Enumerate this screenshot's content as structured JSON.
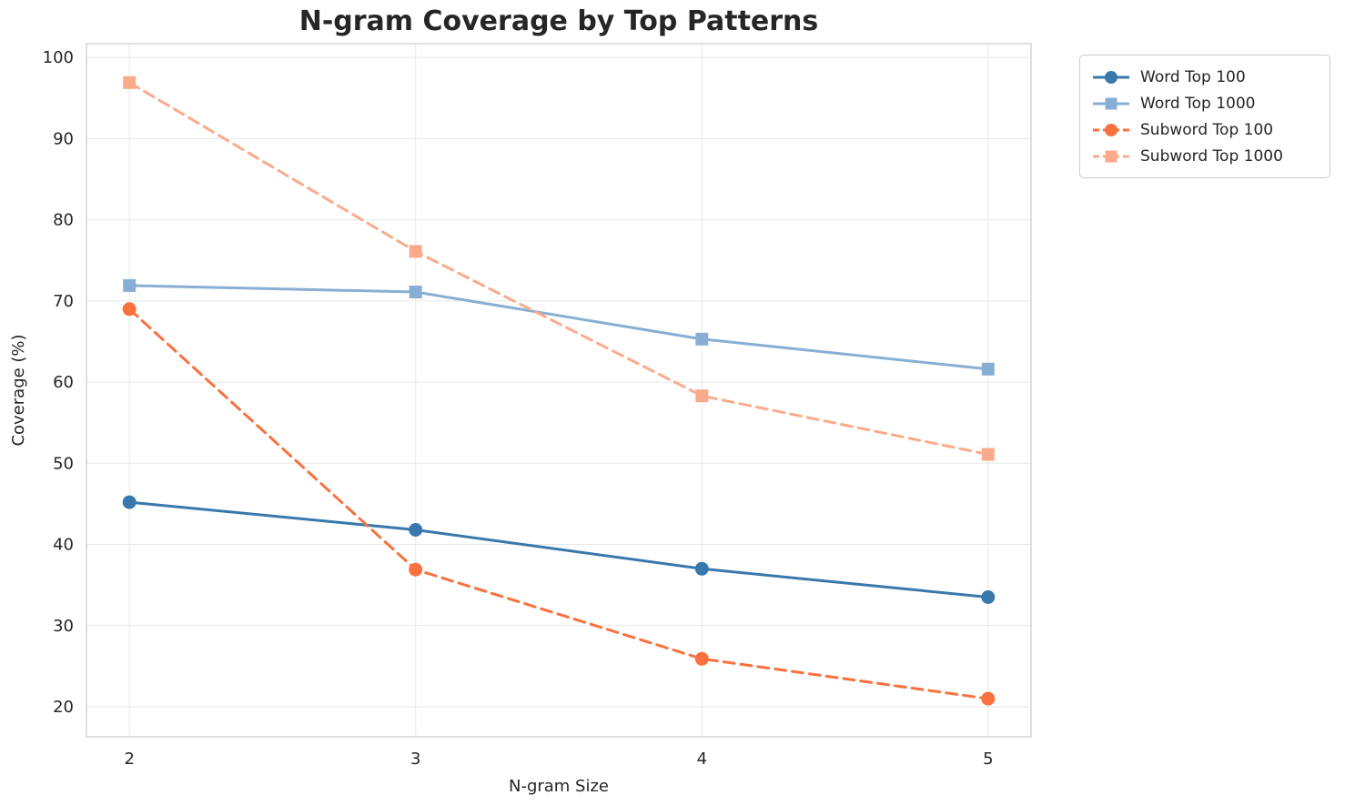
{
  "figure": {
    "background_color": "#ffffff",
    "grid_color": "#e7e7e7",
    "axis_border_color": "#cccccc",
    "text_color": "#262626"
  },
  "chart_data": {
    "type": "line",
    "title": "N-gram Coverage by Top Patterns",
    "xlabel": "N-gram Size",
    "ylabel": "Coverage (%)",
    "x": [
      2,
      3,
      4,
      5
    ],
    "xticks": [
      2,
      3,
      4,
      5
    ],
    "yticks": [
      20,
      30,
      40,
      50,
      60,
      70,
      80,
      90,
      100
    ],
    "xlim": [
      1.85,
      5.15
    ],
    "ylim": [
      16.3,
      101.7
    ],
    "grid": true,
    "legend_position": "upper right, outside plot area",
    "series": [
      {
        "name": "Word Top 100",
        "values": [
          45.2,
          41.8,
          37.0,
          33.5
        ],
        "color": "#3878ac",
        "line_style": "solid",
        "marker": "circle"
      },
      {
        "name": "Word Top 1000",
        "values": [
          71.9,
          71.1,
          65.3,
          61.6
        ],
        "color": "#88afd3",
        "line_style": "solid",
        "marker": "square"
      },
      {
        "name": "Subword Top 100",
        "values": [
          69.0,
          36.9,
          25.9,
          21.0
        ],
        "color": "#f9713e",
        "line_style": "dashed",
        "marker": "circle"
      },
      {
        "name": "Subword Top 1000",
        "values": [
          96.9,
          76.1,
          58.3,
          51.1
        ],
        "color": "#fbab8b",
        "line_style": "dashed",
        "marker": "square"
      }
    ]
  }
}
